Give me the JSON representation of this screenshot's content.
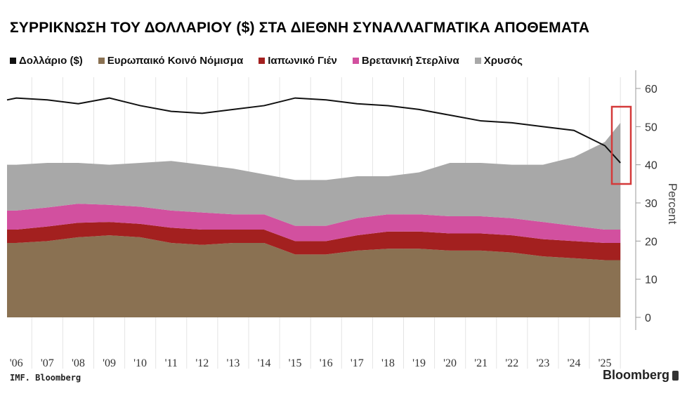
{
  "chart_data": {
    "type": "area",
    "title": "ΣΥΡΡΙΚΝΩΣΗ ΤΟΥ ΔΟΛΛΑΡΙΟΥ ($) ΣΤΑ ΔΙΕΘΝΗ ΣΥΝΑΛΛΑΓΜΑΤΙΚΑ ΑΠΟΘΕΜΑΤΑ",
    "xlabel": "",
    "ylabel": "Percent",
    "ylim": [
      0,
      60
    ],
    "xlim": [
      2005.7,
      2025.7
    ],
    "yticks": [
      "0",
      "10",
      "20",
      "30",
      "40",
      "50",
      "60"
    ],
    "xtick_labels": [
      "'06",
      "'07",
      "'08",
      "'09",
      "'10",
      "'11",
      "'12",
      "'13",
      "'14",
      "'15",
      "'16",
      "'17",
      "'18",
      "'19",
      "'20",
      "'21",
      "'22",
      "'23",
      "'24",
      "'25"
    ],
    "legend_position": "top",
    "x": [
      2005.7,
      2006,
      2007,
      2008,
      2009,
      2010,
      2011,
      2012,
      2013,
      2014,
      2015,
      2016,
      2017,
      2018,
      2019,
      2020,
      2021,
      2022,
      2023,
      2024,
      2025,
      2025.5
    ],
    "line_series": {
      "name": "Δολλάριο ($)",
      "color": "#111111",
      "values": [
        57,
        57.5,
        57,
        56,
        57.5,
        55.5,
        54,
        53.5,
        54.5,
        55.5,
        57.5,
        57,
        56,
        55.5,
        54.5,
        53,
        51.5,
        51,
        50,
        49,
        45,
        40.5
      ]
    },
    "series": [
      {
        "name": "Ευρωπαικό Κοινό Νόμισμα",
        "color": "#8a7152",
        "values": [
          19.5,
          19.5,
          20,
          21,
          21.5,
          21,
          19.5,
          19,
          19.5,
          19.5,
          16.5,
          16.5,
          17.5,
          18,
          18,
          17.5,
          17.5,
          17,
          16,
          15.5,
          15,
          15
        ]
      },
      {
        "name": "Ιαπωνικό Γιέν",
        "color": "#a3201f",
        "values": [
          3.5,
          3.5,
          3.8,
          3.8,
          3.5,
          3.5,
          4,
          4,
          3.5,
          3.5,
          3.5,
          3.5,
          4,
          4.5,
          4.5,
          4.5,
          4.5,
          4.5,
          4.5,
          4.5,
          4.5,
          4.5
        ]
      },
      {
        "name": "Βρετανniκή Στερλίνα",
        "color": "#d2509f",
        "values": [
          5,
          5,
          5,
          5,
          4.5,
          4.5,
          4.5,
          4.5,
          4,
          4,
          4,
          4,
          4.5,
          4.5,
          4.5,
          4.5,
          4.5,
          4.5,
          4.5,
          4,
          3.5,
          3.5
        ]
      },
      {
        "name": "Χρυσός",
        "color": "#a8a8a8",
        "values": [
          12,
          12,
          11.7,
          10.7,
          10.5,
          11.5,
          13,
          12.5,
          12,
          10.5,
          12,
          12,
          11,
          10,
          11,
          14,
          14,
          14,
          15,
          18,
          23,
          28
        ]
      }
    ],
    "legend": [
      "Δολλάριο ($)",
      "Ευρωπαικό Κοινό Νόμισμα",
      "Ιαπωνικό Γιέν",
      "Βρετανική Στερλίνα",
      "Χρυσός"
    ],
    "highlight_color": "#d43a3a"
  },
  "footer": {
    "source": "IMF. Bloomberg",
    "brand": "Bloomberg"
  }
}
